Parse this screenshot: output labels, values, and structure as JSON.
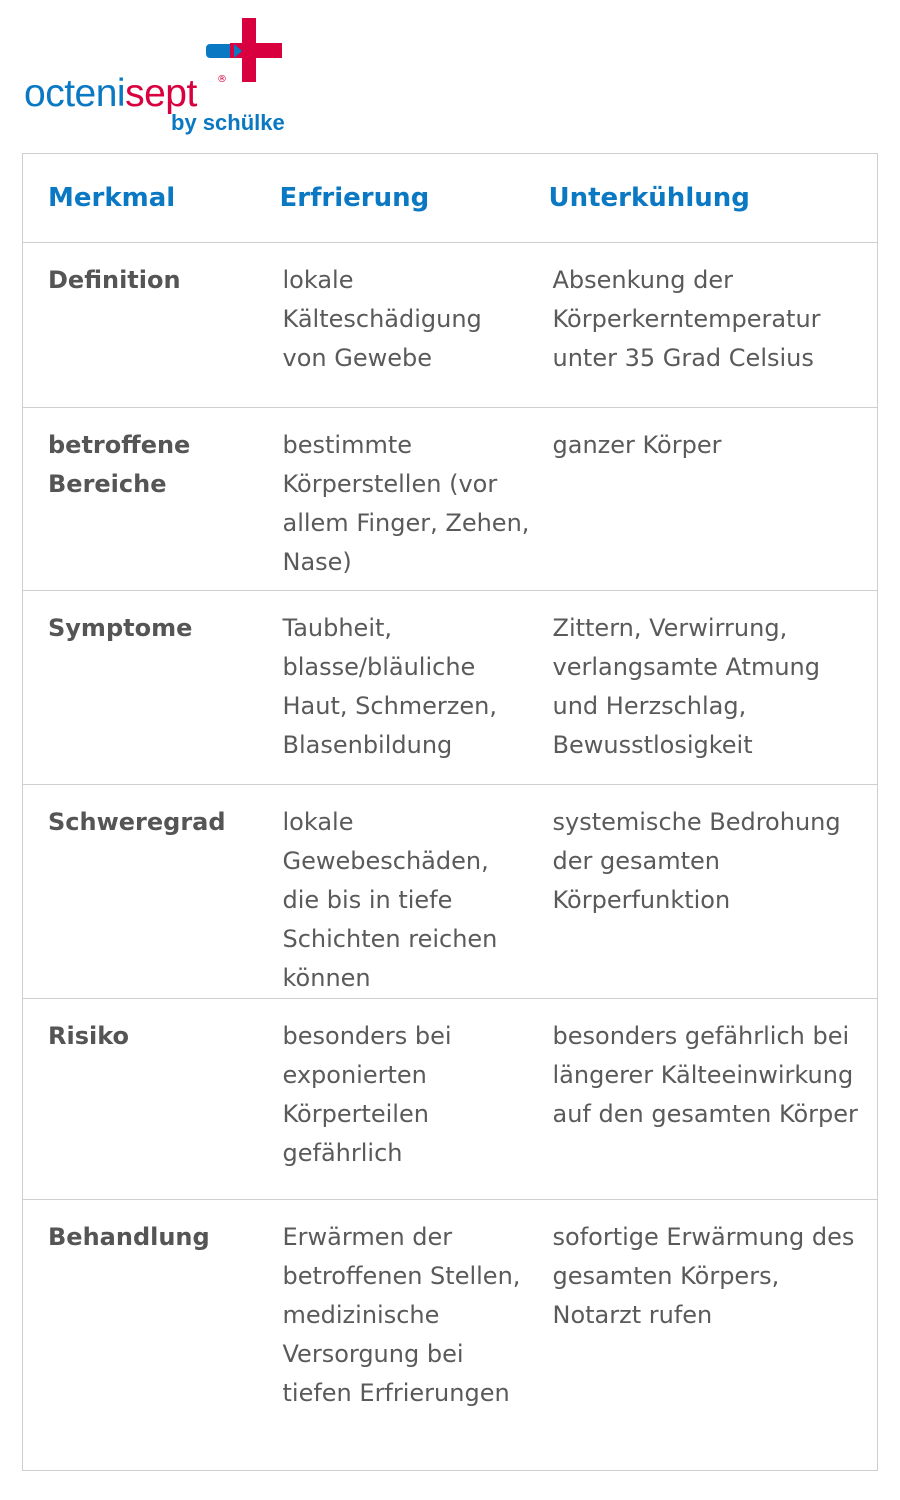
{
  "brand": {
    "name_part1": "octeni",
    "name_part2": "sept",
    "registered": "®",
    "byline": "by schülke",
    "colors": {
      "blue": "#0a78c2",
      "red": "#d9003f"
    }
  },
  "table": {
    "headers": [
      "Merkmal",
      "Erfrierung",
      "Unterkühlung"
    ],
    "rows": [
      {
        "label": "Definition",
        "erfrierung": "lokale Kälteschädigung von Gewebe",
        "unterkuehlung": "Absenkung der Körperkerntemperatur unter 35 Grad Celsius"
      },
      {
        "label": "betroffene Bereiche",
        "erfrierung": "bestimmte Körperstellen (vor allem Finger, Zehen, Nase)",
        "unterkuehlung": "ganzer Körper"
      },
      {
        "label": "Symptome",
        "erfrierung": "Taubheit, blasse/bläuliche Haut, Schmerzen, Blasenbildung",
        "unterkuehlung": "Zittern, Verwirrung, verlangsamte Atmung und Herzschlag, Bewusstlosigkeit"
      },
      {
        "label": "Schweregrad",
        "erfrierung": "lokale Gewebeschäden, die bis in tiefe Schichten reichen können",
        "unterkuehlung": "systemische Bedrohung der gesamten Körperfunktion"
      },
      {
        "label": "Risiko",
        "erfrierung": "besonders bei exponierten Körperteilen gefährlich",
        "unterkuehlung": "besonders gefährlich bei längerer Kälteeinwirkung auf den gesamten Körper"
      },
      {
        "label": "Behandlung",
        "erfrierung": "Erwärmen der betroffenen Stellen, medizinische Versorgung bei tiefen Erfrierungen",
        "unterkuehlung": "sofortige Erwärmung des gesamten Körpers, Notarzt rufen"
      }
    ]
  }
}
